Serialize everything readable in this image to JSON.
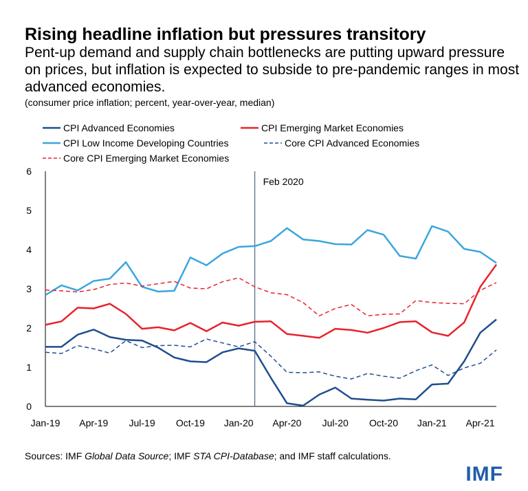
{
  "title": "Rising headline inflation but pressures transitory",
  "subtitle": "Pent-up demand and supply chain bottlenecks are putting upward pressure on prices, but inflation is expected to subside to pre-pandemic ranges in most advanced economies.",
  "note": "(consumer price inflation; percent, year-over-year, median)",
  "source": {
    "prefix": "Sources: IMF ",
    "part1": "Global Data Source",
    "mid": "; IMF ",
    "part2": "STA CPI-Database",
    "suffix": "; and IMF staff calculations."
  },
  "logo": "IMF",
  "colors": {
    "dark_blue": "#1f4e8c",
    "light_blue": "#3aa6dd",
    "red": "#e8222b",
    "axis": "#000000",
    "vline": "#5a6a8a"
  },
  "chart_data": {
    "type": "line",
    "ylim": [
      0,
      6
    ],
    "yticks": [
      "0",
      "1",
      "2",
      "3",
      "4",
      "5",
      "6"
    ],
    "x": [
      "2019-01",
      "2019-02",
      "2019-03",
      "2019-04",
      "2019-05",
      "2019-06",
      "2019-07",
      "2019-08",
      "2019-09",
      "2019-10",
      "2019-11",
      "2019-12",
      "2020-01",
      "2020-02",
      "2020-03",
      "2020-04",
      "2020-05",
      "2020-06",
      "2020-07",
      "2020-08",
      "2020-09",
      "2020-10",
      "2020-11",
      "2020-12",
      "2021-01",
      "2021-02",
      "2021-03",
      "2021-04",
      "2021-05"
    ],
    "xticks": [
      {
        "label": "Jan-19",
        "index": 0
      },
      {
        "label": "Apr-19",
        "index": 3
      },
      {
        "label": "Jul-19",
        "index": 6
      },
      {
        "label": "Oct-19",
        "index": 9
      },
      {
        "label": "Jan-20",
        "index": 12
      },
      {
        "label": "Apr-20",
        "index": 15
      },
      {
        "label": "Jul-20",
        "index": 18
      },
      {
        "label": "Oct-20",
        "index": 21
      },
      {
        "label": "Jan-21",
        "index": 24
      },
      {
        "label": "Apr-21",
        "index": 27
      }
    ],
    "annotation": {
      "label": "Feb 2020",
      "index": 13
    },
    "series": [
      {
        "name": "CPI Advanced Economies",
        "color": "#1f4e8c",
        "dash": false,
        "values": [
          1.52,
          1.52,
          1.83,
          1.96,
          1.77,
          1.7,
          1.68,
          1.5,
          1.25,
          1.15,
          1.13,
          1.38,
          1.48,
          1.42,
          0.73,
          0.08,
          0.02,
          0.3,
          0.48,
          0.2,
          0.17,
          0.15,
          0.2,
          0.18,
          0.56,
          0.58,
          1.15,
          1.88,
          2.22
        ]
      },
      {
        "name": "CPI Emerging Market Economies",
        "color": "#e8222b",
        "dash": false,
        "values": [
          2.08,
          2.17,
          2.52,
          2.5,
          2.62,
          2.36,
          1.98,
          2.02,
          1.94,
          2.13,
          1.92,
          2.14,
          2.06,
          2.16,
          2.17,
          1.85,
          1.8,
          1.75,
          1.98,
          1.95,
          1.88,
          2.0,
          2.15,
          2.17,
          1.89,
          1.8,
          2.14,
          3.05,
          3.62
        ]
      },
      {
        "name": "CPI Low Income Developing Countries",
        "color": "#3aa6dd",
        "dash": false,
        "values": [
          2.84,
          3.09,
          2.96,
          3.2,
          3.26,
          3.68,
          3.05,
          2.93,
          2.95,
          3.8,
          3.6,
          3.9,
          4.07,
          4.09,
          4.22,
          4.55,
          4.26,
          4.22,
          4.14,
          4.13,
          4.5,
          4.38,
          3.84,
          3.77,
          4.6,
          4.46,
          4.02,
          3.94,
          3.66
        ]
      },
      {
        "name": "Core CPI Advanced Economies",
        "color": "#1f4e8c",
        "dash": true,
        "values": [
          1.38,
          1.35,
          1.55,
          1.47,
          1.36,
          1.68,
          1.5,
          1.55,
          1.56,
          1.52,
          1.72,
          1.62,
          1.52,
          1.65,
          1.28,
          0.87,
          0.86,
          0.88,
          0.77,
          0.7,
          0.84,
          0.77,
          0.72,
          0.91,
          1.06,
          0.79,
          0.98,
          1.1,
          1.44
        ]
      },
      {
        "name": "Core CPI Emerging Market Economies",
        "color": "#e8222b",
        "dash": true,
        "values": [
          2.97,
          2.95,
          2.92,
          2.98,
          3.11,
          3.15,
          3.07,
          3.13,
          3.19,
          3.02,
          3.0,
          3.18,
          3.28,
          3.05,
          2.9,
          2.85,
          2.65,
          2.31,
          2.5,
          2.6,
          2.31,
          2.35,
          2.36,
          2.7,
          2.65,
          2.63,
          2.62,
          2.96,
          3.16
        ]
      }
    ]
  }
}
